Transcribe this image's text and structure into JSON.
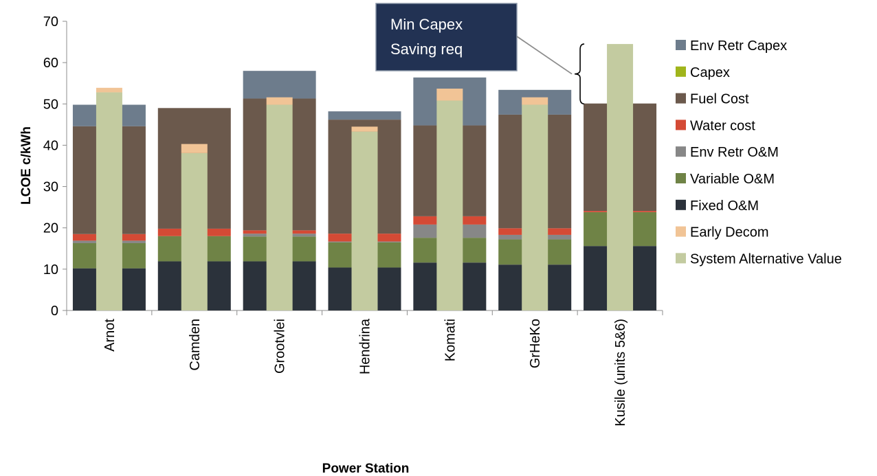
{
  "chart_data": {
    "type": "bar",
    "stacked": true,
    "title": "",
    "xlabel": "Power Station",
    "ylabel": "LCOE c/kWh",
    "ylim": [
      0,
      70
    ],
    "yticks": [
      0,
      10,
      20,
      30,
      40,
      50,
      60,
      70
    ],
    "grid": false,
    "legend_position": "right",
    "categories": [
      "Arnot",
      "Camden",
      "Grootvlei",
      "Hendrina",
      "Komati",
      "GrHeKo",
      "Kusile (units 5&6)"
    ],
    "series": [
      {
        "name": "Fixed O&M",
        "color": "#2b323b",
        "values": [
          10.2,
          11.9,
          11.9,
          10.4,
          11.6,
          11.1,
          15.6
        ]
      },
      {
        "name": "Variable O&M",
        "color": "#6f8346",
        "values": [
          6.1,
          6.1,
          6.0,
          6.1,
          6.0,
          6.1,
          8.2
        ]
      },
      {
        "name": "Env Retr O&M",
        "color": "#878787",
        "values": [
          0.6,
          0.0,
          0.7,
          0.2,
          3.2,
          1.1,
          0.0
        ]
      },
      {
        "name": "Water cost",
        "color": "#d44a35",
        "values": [
          1.6,
          1.8,
          0.8,
          1.9,
          2.0,
          1.6,
          0.3
        ]
      },
      {
        "name": "Fuel Cost",
        "color": "#6b594c",
        "values": [
          26.1,
          29.2,
          31.9,
          27.6,
          22.0,
          27.5,
          26.0
        ]
      },
      {
        "name": "Capex",
        "color": "#a0b51b",
        "values": [
          0.0,
          0.0,
          0.0,
          0.0,
          0.0,
          0.0,
          0.0
        ]
      },
      {
        "name": "Env Retr Capex",
        "color": "#6d7c8c",
        "values": [
          5.2,
          0.0,
          6.7,
          2.0,
          11.6,
          6.0,
          0.0
        ]
      }
    ],
    "overlay_series": [
      {
        "name": "System Alternative Value",
        "color": "#c3cba0",
        "values": [
          52.8,
          38.1,
          49.8,
          43.3,
          50.8,
          49.8,
          64.5
        ]
      },
      {
        "name": "Early Decom",
        "color": "#f1c496",
        "values": [
          1.1,
          2.2,
          1.8,
          1.2,
          2.9,
          1.8,
          0.0
        ]
      }
    ],
    "legend": [
      "Env Retr Capex",
      "Capex",
      "Fuel Cost",
      "Water cost",
      "Env Retr O&M",
      "Variable O&M",
      "Fixed O&M",
      "Early Decom",
      "System Alternative Value"
    ],
    "annotation": {
      "lines": [
        "Min Capex",
        "Saving req"
      ],
      "box_color": "#223253",
      "points_to": "Kusile (units 5&6)",
      "bracket_range": [
        50.0,
        64.5
      ]
    }
  }
}
